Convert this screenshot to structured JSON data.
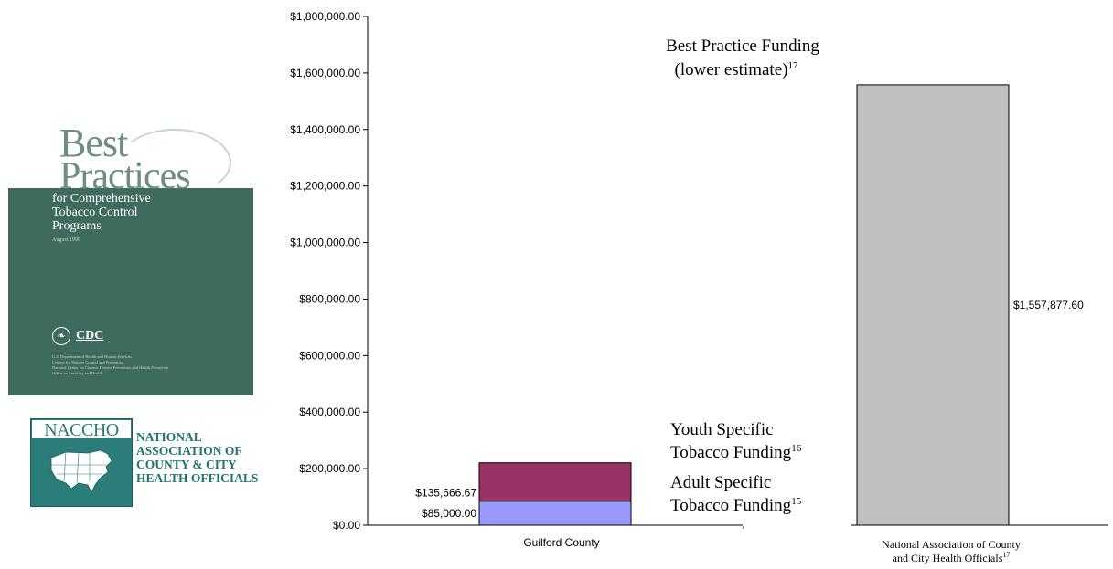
{
  "chart_data": {
    "type": "bar",
    "stacked": true,
    "categories": [
      "Guilford County",
      "National Association of County\nand City Health Officials"
    ],
    "category_superscripts": [
      "",
      "17"
    ],
    "series": [
      {
        "name": "Adult Specific Tobacco Funding",
        "superscript": "15",
        "values": [
          85000.0,
          null
        ],
        "color": "#9999ff",
        "label": "$85,000.00"
      },
      {
        "name": "Youth Specific Tobacco Funding",
        "superscript": "16",
        "values": [
          135666.67,
          null
        ],
        "color": "#993366",
        "label": "$135,666.67"
      },
      {
        "name": "Best Practice Funding (lower estimate)",
        "superscript": "17",
        "values": [
          null,
          1557877.6
        ],
        "color": "#c0c0c0",
        "label": "$1,557,877.60"
      }
    ],
    "yticks": [
      "$0.00",
      "$200,000.00",
      "$400,000.00",
      "$600,000.00",
      "$800,000.00",
      "$1,000,000.00",
      "$1,200,000.00",
      "$1,400,000.00",
      "$1,600,000.00",
      "$1,800,000.00"
    ],
    "ylim": [
      0,
      1800000
    ],
    "grid": false,
    "legend": "inline annotations"
  },
  "annotations": {
    "best_practice_line1": "Best Practice Funding",
    "best_practice_line2": "(lower estimate)",
    "best_practice_sup": "17",
    "youth_line1": "Youth Specific",
    "youth_line2": "Tobacco Funding",
    "youth_sup": "16",
    "adult_line1": "Adult Specific",
    "adult_line2": "Tobacco Funding",
    "adult_sup": "15"
  },
  "cover": {
    "title_line1": "Best",
    "title_line2": "Practices",
    "subtitle_line1": "for Comprehensive",
    "subtitle_line2": "Tobacco Control",
    "subtitle_line3": "Programs",
    "date": "August 1999",
    "agency": "CDC",
    "fine_print": "U.S. Department of Health and Human Services\nCenters for Disease Control and Prevention\nNational Center for Chronic Disease Prevention and Health Promotion\nOffice on Smoking and Health"
  },
  "naccho": {
    "wordmark": "NACCHO",
    "line1": "NATIONAL",
    "line2": "ASSOCIATION OF",
    "line3": "COUNTY & CITY",
    "line4": "HEALTH OFFICIALS"
  }
}
